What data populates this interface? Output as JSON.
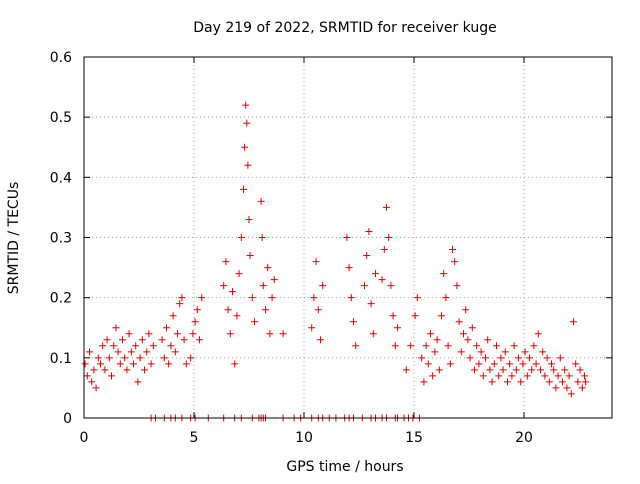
{
  "chart_data": {
    "type": "scatter",
    "title": "Day 219 of 2022, SRMTID for receiver kuge",
    "xlabel": "GPS time / hours",
    "ylabel": "SRMTID / TECUs",
    "xlim": [
      0,
      24
    ],
    "ylim": [
      0,
      0.6
    ],
    "x_ticks": [
      0,
      5,
      10,
      15,
      20
    ],
    "x_tick_labels": [
      "0",
      "5",
      "10",
      "15",
      "20"
    ],
    "y_ticks": [
      0,
      0.1,
      0.2,
      0.3,
      0.4,
      0.5,
      0.6
    ],
    "y_tick_labels": [
      "0",
      "0.1",
      "0.2",
      "0.3",
      "0.4",
      "0.5",
      "0.6"
    ],
    "grid": true,
    "marker": "plus",
    "color": "#e00000",
    "series": [
      {
        "name": "SRMTID",
        "points": [
          [
            0.05,
            0.09
          ],
          [
            0.15,
            0.07
          ],
          [
            0.25,
            0.11
          ],
          [
            0.35,
            0.06
          ],
          [
            0.45,
            0.08
          ],
          [
            0.55,
            0.05
          ],
          [
            0.65,
            0.1
          ],
          [
            0.75,
            0.09
          ],
          [
            0.85,
            0.12
          ],
          [
            0.95,
            0.08
          ],
          [
            1.05,
            0.13
          ],
          [
            1.15,
            0.1
          ],
          [
            1.25,
            0.07
          ],
          [
            1.35,
            0.12
          ],
          [
            1.45,
            0.15
          ],
          [
            1.55,
            0.11
          ],
          [
            1.65,
            0.09
          ],
          [
            1.75,
            0.13
          ],
          [
            1.85,
            0.1
          ],
          [
            1.95,
            0.08
          ],
          [
            2.05,
            0.14
          ],
          [
            2.15,
            0.11
          ],
          [
            2.25,
            0.09
          ],
          [
            2.35,
            0.12
          ],
          [
            2.45,
            0.06
          ],
          [
            2.55,
            0.1
          ],
          [
            2.65,
            0.13
          ],
          [
            2.75,
            0.08
          ],
          [
            2.85,
            0.11
          ],
          [
            2.95,
            0.14
          ],
          [
            3.05,
            0.09
          ],
          [
            3.15,
            0.12
          ],
          [
            3.55,
            0.13
          ],
          [
            3.65,
            0.1
          ],
          [
            3.75,
            0.15
          ],
          [
            3.85,
            0.09
          ],
          [
            3.95,
            0.12
          ],
          [
            4.05,
            0.17
          ],
          [
            4.15,
            0.11
          ],
          [
            4.25,
            0.14
          ],
          [
            4.35,
            0.19
          ],
          [
            4.45,
            0.2
          ],
          [
            4.55,
            0.13
          ],
          [
            4.65,
            0.09
          ],
          [
            4.85,
            0.1
          ],
          [
            4.95,
            0.14
          ],
          [
            5.05,
            0.16
          ],
          [
            5.15,
            0.18
          ],
          [
            5.25,
            0.13
          ],
          [
            5.35,
            0.2
          ],
          [
            6.35,
            0.22
          ],
          [
            6.45,
            0.26
          ],
          [
            6.55,
            0.18
          ],
          [
            6.65,
            0.14
          ],
          [
            6.75,
            0.21
          ],
          [
            6.85,
            0.09
          ],
          [
            6.95,
            0.17
          ],
          [
            7.05,
            0.24
          ],
          [
            7.15,
            0.3
          ],
          [
            7.25,
            0.38
          ],
          [
            7.3,
            0.45
          ],
          [
            7.35,
            0.52
          ],
          [
            7.4,
            0.49
          ],
          [
            7.45,
            0.42
          ],
          [
            7.5,
            0.33
          ],
          [
            7.55,
            0.27
          ],
          [
            7.65,
            0.2
          ],
          [
            7.75,
            0.16
          ],
          [
            8.05,
            0.36
          ],
          [
            8.1,
            0.3
          ],
          [
            8.15,
            0.22
          ],
          [
            8.25,
            0.18
          ],
          [
            8.35,
            0.25
          ],
          [
            8.45,
            0.14
          ],
          [
            8.55,
            0.2
          ],
          [
            8.65,
            0.23
          ],
          [
            9.05,
            0.14
          ],
          [
            10.35,
            0.15
          ],
          [
            10.45,
            0.2
          ],
          [
            10.55,
            0.26
          ],
          [
            10.65,
            0.18
          ],
          [
            10.75,
            0.13
          ],
          [
            10.85,
            0.22
          ],
          [
            11.95,
            0.3
          ],
          [
            12.05,
            0.25
          ],
          [
            12.15,
            0.2
          ],
          [
            12.25,
            0.16
          ],
          [
            12.35,
            0.12
          ],
          [
            12.75,
            0.22
          ],
          [
            12.85,
            0.27
          ],
          [
            12.95,
            0.31
          ],
          [
            13.05,
            0.19
          ],
          [
            13.15,
            0.14
          ],
          [
            13.25,
            0.24
          ],
          [
            13.55,
            0.23
          ],
          [
            13.65,
            0.28
          ],
          [
            13.75,
            0.35
          ],
          [
            13.85,
            0.3
          ],
          [
            13.95,
            0.22
          ],
          [
            14.05,
            0.17
          ],
          [
            14.15,
            0.12
          ],
          [
            14.25,
            0.15
          ],
          [
            14.65,
            0.08
          ],
          [
            14.85,
            0.12
          ],
          [
            15.05,
            0.17
          ],
          [
            15.15,
            0.2
          ],
          [
            15.35,
            0.1
          ],
          [
            15.45,
            0.06
          ],
          [
            15.55,
            0.12
          ],
          [
            15.65,
            0.09
          ],
          [
            15.75,
            0.14
          ],
          [
            15.85,
            0.07
          ],
          [
            15.95,
            0.11
          ],
          [
            16.05,
            0.13
          ],
          [
            16.15,
            0.08
          ],
          [
            16.25,
            0.17
          ],
          [
            16.35,
            0.24
          ],
          [
            16.45,
            0.2
          ],
          [
            16.55,
            0.12
          ],
          [
            16.65,
            0.09
          ],
          [
            16.75,
            0.28
          ],
          [
            16.85,
            0.26
          ],
          [
            16.95,
            0.22
          ],
          [
            17.05,
            0.16
          ],
          [
            17.15,
            0.11
          ],
          [
            17.25,
            0.14
          ],
          [
            17.35,
            0.18
          ],
          [
            17.45,
            0.13
          ],
          [
            17.55,
            0.1
          ],
          [
            17.65,
            0.15
          ],
          [
            17.75,
            0.08
          ],
          [
            17.85,
            0.12
          ],
          [
            17.95,
            0.09
          ],
          [
            18.05,
            0.11
          ],
          [
            18.15,
            0.07
          ],
          [
            18.25,
            0.1
          ],
          [
            18.35,
            0.13
          ],
          [
            18.45,
            0.08
          ],
          [
            18.55,
            0.06
          ],
          [
            18.65,
            0.09
          ],
          [
            18.75,
            0.12
          ],
          [
            18.85,
            0.07
          ],
          [
            18.95,
            0.1
          ],
          [
            19.05,
            0.08
          ],
          [
            19.15,
            0.11
          ],
          [
            19.25,
            0.06
          ],
          [
            19.35,
            0.09
          ],
          [
            19.45,
            0.07
          ],
          [
            19.55,
            0.12
          ],
          [
            19.65,
            0.08
          ],
          [
            19.75,
            0.1
          ],
          [
            19.85,
            0.06
          ],
          [
            19.95,
            0.09
          ],
          [
            20.05,
            0.11
          ],
          [
            20.15,
            0.07
          ],
          [
            20.25,
            0.1
          ],
          [
            20.35,
            0.08
          ],
          [
            20.45,
            0.12
          ],
          [
            20.55,
            0.09
          ],
          [
            20.65,
            0.14
          ],
          [
            20.75,
            0.08
          ],
          [
            20.85,
            0.11
          ],
          [
            20.95,
            0.07
          ],
          [
            21.05,
            0.1
          ],
          [
            21.15,
            0.06
          ],
          [
            21.25,
            0.09
          ],
          [
            21.35,
            0.08
          ],
          [
            21.45,
            0.05
          ],
          [
            21.55,
            0.07
          ],
          [
            21.65,
            0.1
          ],
          [
            21.75,
            0.06
          ],
          [
            21.85,
            0.08
          ],
          [
            21.95,
            0.05
          ],
          [
            22.05,
            0.07
          ],
          [
            22.15,
            0.04
          ],
          [
            22.25,
            0.16
          ],
          [
            22.35,
            0.09
          ],
          [
            22.45,
            0.06
          ],
          [
            22.55,
            0.08
          ],
          [
            22.65,
            0.05
          ],
          [
            22.75,
            0.07
          ],
          [
            22.8,
            0.06
          ]
        ],
        "zero_points": [
          3.05,
          3.25,
          3.65,
          3.95,
          4.15,
          4.45,
          4.85,
          5.05,
          5.65,
          6.35,
          6.85,
          7.15,
          7.65,
          7.95,
          8.05,
          8.15,
          8.25,
          9.05,
          9.55,
          9.85,
          10.35,
          10.65,
          10.85,
          11.15,
          11.45,
          11.85,
          12.05,
          12.25,
          12.65,
          13.05,
          13.25,
          13.55,
          13.75,
          14.15,
          14.25,
          14.55,
          14.75,
          14.95,
          15.25
        ]
      }
    ]
  }
}
